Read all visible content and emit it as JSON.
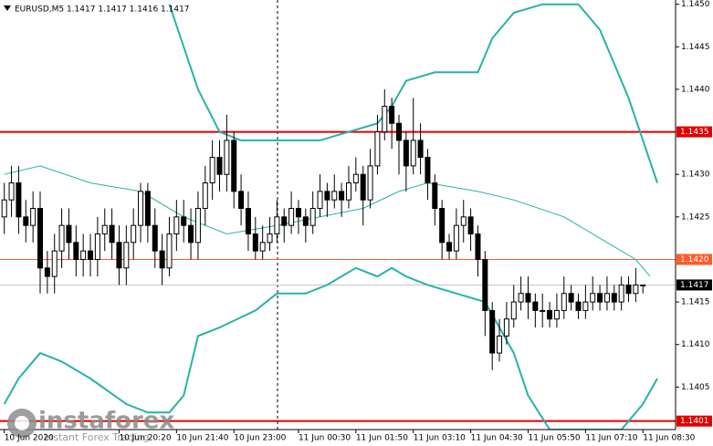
{
  "chart_data": {
    "type": "candlestick",
    "title": "EURUSD,M5  1.1417 1.1417 1.1416 1.1417",
    "candles": [
      [
        1.1425,
        1.1429,
        1.1423,
        1.1427
      ],
      [
        1.1427,
        1.1431,
        1.1425,
        1.1429
      ],
      [
        1.1429,
        1.1431,
        1.1423,
        1.1425
      ],
      [
        1.1425,
        1.1427,
        1.1422,
        1.1424
      ],
      [
        1.1424,
        1.1428,
        1.1422,
        1.1426
      ],
      [
        1.1426,
        1.1428,
        1.1416,
        1.1419
      ],
      [
        1.1419,
        1.1421,
        1.1416,
        1.1418
      ],
      [
        1.1418,
        1.1423,
        1.1416,
        1.1421
      ],
      [
        1.1421,
        1.1426,
        1.1419,
        1.1424
      ],
      [
        1.1424,
        1.1426,
        1.142,
        1.1422
      ],
      [
        1.1422,
        1.1424,
        1.1418,
        1.142
      ],
      [
        1.142,
        1.1423,
        1.1418,
        1.1421
      ],
      [
        1.1421,
        1.1423,
        1.1418,
        1.142
      ],
      [
        1.142,
        1.1425,
        1.1418,
        1.1423
      ],
      [
        1.1423,
        1.1426,
        1.1421,
        1.1424
      ],
      [
        1.1424,
        1.1426,
        1.142,
        1.1422
      ],
      [
        1.1422,
        1.1424,
        1.1417,
        1.1419
      ],
      [
        1.1419,
        1.1424,
        1.1417,
        1.1422
      ],
      [
        1.1422,
        1.1426,
        1.142,
        1.1424
      ],
      [
        1.1424,
        1.1429,
        1.1422,
        1.1428
      ],
      [
        1.1428,
        1.1429,
        1.1422,
        1.1424
      ],
      [
        1.1424,
        1.1426,
        1.1419,
        1.1421
      ],
      [
        1.1421,
        1.1423,
        1.1417,
        1.1419
      ],
      [
        1.1419,
        1.1425,
        1.1418,
        1.1423
      ],
      [
        1.1423,
        1.1427,
        1.1421,
        1.1425
      ],
      [
        1.1425,
        1.1427,
        1.1422,
        1.1424
      ],
      [
        1.1424,
        1.1426,
        1.142,
        1.1422
      ],
      [
        1.1422,
        1.1428,
        1.142,
        1.1426
      ],
      [
        1.1426,
        1.1431,
        1.1424,
        1.1429
      ],
      [
        1.1429,
        1.1434,
        1.1427,
        1.1432
      ],
      [
        1.1432,
        1.1434,
        1.1428,
        1.143
      ],
      [
        1.143,
        1.1437,
        1.1428,
        1.1434
      ],
      [
        1.1434,
        1.1435,
        1.1426,
        1.1428
      ],
      [
        1.1428,
        1.143,
        1.1424,
        1.1426
      ],
      [
        1.1426,
        1.1428,
        1.1421,
        1.1423
      ],
      [
        1.1423,
        1.1425,
        1.142,
        1.1421
      ],
      [
        1.1421,
        1.1424,
        1.142,
        1.1422
      ],
      [
        1.1422,
        1.1425,
        1.1421,
        1.1423
      ],
      [
        1.1423,
        1.1427,
        1.1422,
        1.1425
      ],
      [
        1.1425,
        1.1426,
        1.1422,
        1.1424
      ],
      [
        1.1424,
        1.1428,
        1.1423,
        1.1426
      ],
      [
        1.1426,
        1.1427,
        1.1423,
        1.1425
      ],
      [
        1.1425,
        1.1426,
        1.1422,
        1.1424
      ],
      [
        1.1424,
        1.1428,
        1.1423,
        1.1426
      ],
      [
        1.1426,
        1.143,
        1.1425,
        1.1428
      ],
      [
        1.1428,
        1.1429,
        1.1425,
        1.1427
      ],
      [
        1.1427,
        1.143,
        1.1426,
        1.1428
      ],
      [
        1.1428,
        1.1429,
        1.1425,
        1.1427
      ],
      [
        1.1427,
        1.1431,
        1.1426,
        1.1429
      ],
      [
        1.1429,
        1.1432,
        1.1428,
        1.143
      ],
      [
        1.143,
        1.1431,
        1.1424,
        1.1427
      ],
      [
        1.1427,
        1.1433,
        1.1426,
        1.1431
      ],
      [
        1.1431,
        1.1437,
        1.143,
        1.1435
      ],
      [
        1.1435,
        1.144,
        1.1434,
        1.1438
      ],
      [
        1.1438,
        1.1439,
        1.1433,
        1.1436
      ],
      [
        1.1436,
        1.1437,
        1.143,
        1.1434
      ],
      [
        1.1434,
        1.1435,
        1.1428,
        1.1431
      ],
      [
        1.1431,
        1.1439,
        1.143,
        1.1434
      ],
      [
        1.1434,
        1.1436,
        1.143,
        1.1432
      ],
      [
        1.1432,
        1.1433,
        1.1427,
        1.1429
      ],
      [
        1.1429,
        1.143,
        1.1424,
        1.1426
      ],
      [
        1.1426,
        1.1427,
        1.142,
        1.1422
      ],
      [
        1.1422,
        1.1423,
        1.142,
        1.1421
      ],
      [
        1.1421,
        1.1426,
        1.142,
        1.1424
      ],
      [
        1.1424,
        1.1427,
        1.1422,
        1.1425
      ],
      [
        1.1425,
        1.1426,
        1.1421,
        1.1423
      ],
      [
        1.1423,
        1.1424,
        1.1418,
        1.142
      ],
      [
        1.142,
        1.1421,
        1.1411,
        1.1414
      ],
      [
        1.1414,
        1.1415,
        1.1407,
        1.1409
      ],
      [
        1.1409,
        1.1413,
        1.1408,
        1.1411
      ],
      [
        1.1411,
        1.1415,
        1.141,
        1.1413
      ],
      [
        1.1413,
        1.1417,
        1.1412,
        1.1415
      ],
      [
        1.1415,
        1.1418,
        1.1414,
        1.1416
      ],
      [
        1.1416,
        1.1418,
        1.1413,
        1.1415
      ],
      [
        1.1415,
        1.1416,
        1.1412,
        1.1414
      ],
      [
        1.1414,
        1.1416,
        1.1412,
        1.1414
      ],
      [
        1.1414,
        1.1415,
        1.1412,
        1.1413
      ],
      [
        1.1413,
        1.1416,
        1.1412,
        1.1414
      ],
      [
        1.1414,
        1.1418,
        1.1413,
        1.1416
      ],
      [
        1.1416,
        1.1417,
        1.1414,
        1.1415
      ],
      [
        1.1415,
        1.1416,
        1.1413,
        1.1414
      ],
      [
        1.1414,
        1.1417,
        1.1413,
        1.1415
      ],
      [
        1.1415,
        1.1418,
        1.1414,
        1.1416
      ],
      [
        1.1416,
        1.1417,
        1.1414,
        1.1415
      ],
      [
        1.1415,
        1.1418,
        1.1414,
        1.1416
      ],
      [
        1.1416,
        1.1417,
        1.1414,
        1.1415
      ],
      [
        1.1415,
        1.1418,
        1.1414,
        1.1417
      ],
      [
        1.1417,
        1.1418,
        1.1415,
        1.1416
      ],
      [
        1.1416,
        1.1419,
        1.1415,
        1.1417
      ],
      [
        1.1417,
        1.1417,
        1.1416,
        1.1417
      ]
    ],
    "series": [
      {
        "color": "#26b3a6",
        "width": 2,
        "x": [
          23,
          27,
          30,
          33,
          38,
          44,
          48,
          52,
          54,
          56,
          60,
          66,
          68,
          71,
          75,
          80,
          83,
          87,
          91
        ],
        "values": [
          1.145,
          1.144,
          1.1435,
          1.1434,
          1.1434,
          1.1434,
          1.1435,
          1.1436,
          1.1438,
          1.1441,
          1.1442,
          1.1442,
          1.1446,
          1.1449,
          1.145,
          1.145,
          1.1447,
          1.1439,
          1.1429
        ]
      },
      {
        "color": "#26b3a6",
        "width": 1,
        "x": [
          0,
          5,
          12,
          19,
          25,
          31,
          38,
          44,
          50,
          55,
          59,
          66,
          71,
          78,
          84,
          88,
          90
        ],
        "values": [
          1.143,
          1.1431,
          1.1429,
          1.1428,
          1.1425,
          1.1423,
          1.1424,
          1.1425,
          1.1426,
          1.1428,
          1.1429,
          1.1428,
          1.1427,
          1.1425,
          1.1422,
          1.142,
          1.1418
        ]
      },
      {
        "color": "#26b3a6",
        "width": 2,
        "x": [
          0,
          2,
          5,
          8,
          12,
          17,
          20,
          23,
          25,
          27,
          30,
          35,
          38,
          42,
          45,
          49,
          52,
          54,
          56,
          59,
          63,
          67,
          71,
          73,
          76,
          80,
          86,
          89,
          91
        ],
        "values": [
          1.1403,
          1.1406,
          1.1409,
          1.1408,
          1.1406,
          1.1403,
          1.1402,
          1.1402,
          1.1404,
          1.1411,
          1.1412,
          1.1414,
          1.1416,
          1.1416,
          1.1417,
          1.1419,
          1.1418,
          1.1419,
          1.1418,
          1.1417,
          1.1416,
          1.1415,
          1.1409,
          1.1404,
          1.14,
          1.14,
          1.14,
          1.1403,
          1.1406
        ]
      }
    ],
    "ylim": [
      1.14,
      1.14505
    ],
    "yticks": [
      {
        "value": 1.145,
        "label": "1.1450"
      },
      1.1445,
      {
        "value": 1.144,
        "label": "1.1440"
      },
      {
        "value": 1.143,
        "label": "1.1430"
      },
      1.1425,
      1.1415,
      {
        "value": 1.141,
        "label": "1.1410"
      },
      1.1405
    ],
    "xticks": [
      {
        "value": 0,
        "label": "10 Jun 2020"
      },
      {
        "value": 16,
        "label": "10 Jun 20:20"
      },
      {
        "value": 24,
        "label": "10 Jun 21:40"
      },
      {
        "value": 32,
        "label": "10 Jun 23:00"
      },
      {
        "value": 41,
        "label": "11 Jun 00:30"
      },
      {
        "value": 49,
        "label": "11 Jun 01:50"
      },
      {
        "value": 57,
        "label": "11 Jun 03:10"
      },
      {
        "value": 65,
        "label": "11 Jun 04:30"
      },
      {
        "value": 73,
        "label": "11 Jun 05:50"
      },
      {
        "value": 81,
        "label": "11 Jun 07:10"
      },
      {
        "value": 89,
        "label": "11 Jun 08:30"
      }
    ],
    "levels": [
      {
        "value": 1.1435,
        "color": "#e00000",
        "width": 2
      },
      {
        "value": 1.142,
        "label": "1.1420",
        "color": "#ff5a28",
        "width": 1
      },
      {
        "value": 1.1401,
        "color": "#e00000",
        "width": 2
      },
      {
        "value": 1.1417,
        "color": "#000000",
        "width": 1
      }
    ],
    "grid": false,
    "watermark": {
      "brand": "instaforex",
      "slogan": "Instant Forex Trading"
    }
  }
}
